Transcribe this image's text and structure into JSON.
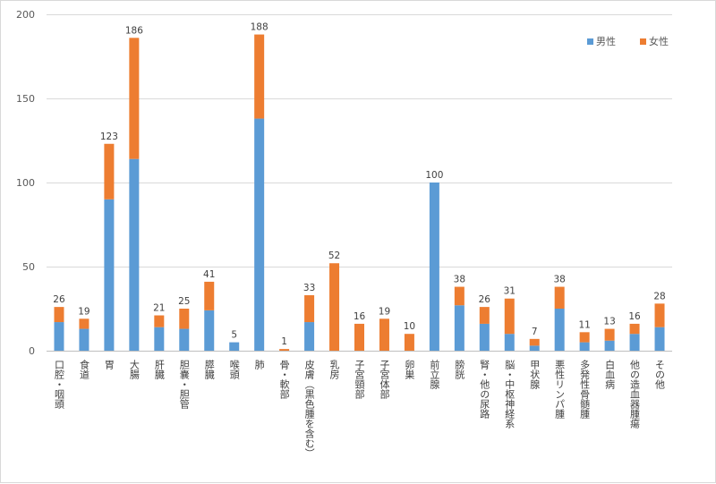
{
  "chart_data": {
    "type": "bar",
    "stacked": true,
    "title": "",
    "xlabel": "",
    "ylabel": "",
    "ylim": [
      0,
      200
    ],
    "yticks": [
      "0",
      "50",
      "100",
      "150",
      "200"
    ],
    "grid": true,
    "legend_position": "top-right",
    "categories": [
      "口腔・咽頭",
      "食道",
      "胃",
      "大腸",
      "肝臓",
      "胆嚢・胆管",
      "膵臓",
      "喉頭",
      "肺",
      "骨・軟部",
      "皮膚（黒色腫を含む）",
      "乳房",
      "子宮頸部",
      "子宮体部",
      "卵巣",
      "前立腺",
      "膀胱",
      "腎・他の尿路",
      "脳・中枢神経系",
      "甲状腺",
      "悪性リンパ腫",
      "多発性骨髄腫",
      "白血病",
      "他の造血器腫瘍",
      "その他"
    ],
    "series": [
      {
        "name": "男性",
        "color": "#5b9bd5",
        "values": [
          17,
          13,
          90,
          114,
          14,
          13,
          24,
          5,
          138,
          0,
          17,
          0,
          0,
          0,
          0,
          100,
          27,
          16,
          10,
          3,
          25,
          5,
          6,
          10,
          14
        ]
      },
      {
        "name": "女性",
        "color": "#ed7d31",
        "values": [
          9,
          6,
          33,
          72,
          7,
          12,
          17,
          0,
          50,
          1,
          16,
          52,
          16,
          19,
          10,
          0,
          11,
          10,
          21,
          4,
          13,
          6,
          7,
          6,
          14
        ]
      }
    ],
    "totals": [
      "26",
      "19",
      "123",
      "186",
      "21",
      "25",
      "41",
      "5",
      "188",
      "1",
      "33",
      "52",
      "16",
      "19",
      "10",
      "100",
      "38",
      "26",
      "31",
      "7",
      "38",
      "11",
      "13",
      "16",
      "28"
    ]
  }
}
